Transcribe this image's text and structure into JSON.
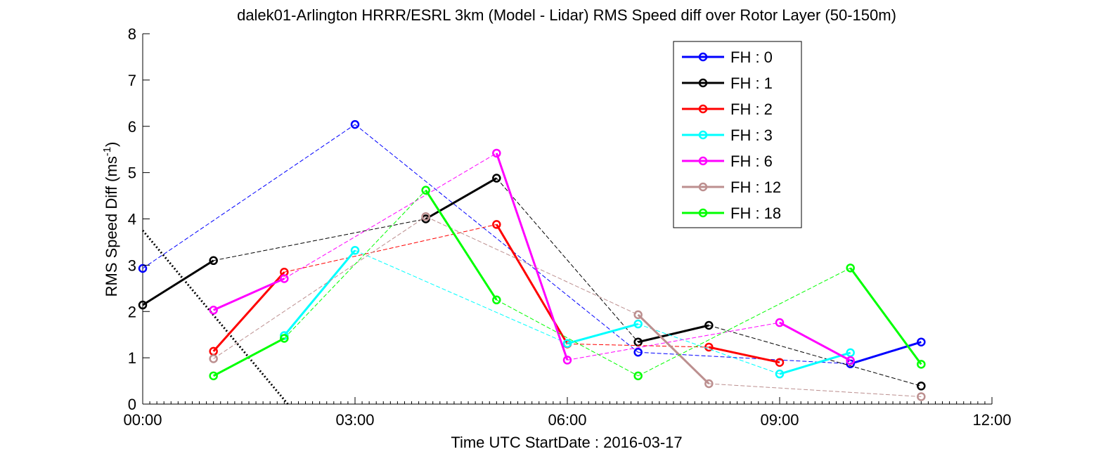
{
  "chart_data": {
    "type": "line",
    "title": "dalek01-Arlington HRRR/ESRL 3km (Model - Lidar) RMS Speed diff over Rotor Layer (50-150m)",
    "xlabel": "Time UTC    StartDate : 2016-03-17",
    "ylabel_main": "RMS Speed Diff (ms",
    "ylabel_sup": "-1",
    "ylabel_close": ")",
    "xlim": [
      0,
      12
    ],
    "ylim": [
      0,
      8
    ],
    "x_ticks": [
      0,
      3,
      6,
      9,
      12
    ],
    "x_tick_labels": [
      "00:00",
      "03:00",
      "06:00",
      "09:00",
      "12:00"
    ],
    "y_ticks": [
      0,
      1,
      2,
      3,
      4,
      5,
      6,
      7,
      8
    ],
    "y_tick_labels": [
      "0",
      "1",
      "2",
      "3",
      "4",
      "5",
      "6",
      "7",
      "8"
    ],
    "grid": false,
    "legend_position": "top-right",
    "series": [
      {
        "name": "FH : 0",
        "color": "#0000ff",
        "x": [
          0,
          3,
          7,
          10,
          11
        ],
        "y": [
          2.93,
          6.04,
          1.12,
          0.87,
          1.34
        ]
      },
      {
        "name": "FH : 1",
        "color": "#000000",
        "x": [
          0,
          1,
          4,
          5,
          7,
          8,
          11
        ],
        "y": [
          2.14,
          3.1,
          4.0,
          4.88,
          1.34,
          1.7,
          0.39
        ]
      },
      {
        "name": "FH : 2",
        "color": "#ff0000",
        "x": [
          1,
          2,
          5,
          6,
          8,
          9
        ],
        "y": [
          1.14,
          2.85,
          3.88,
          1.3,
          1.23,
          0.9
        ]
      },
      {
        "name": "FH : 3",
        "color": "#00ffff",
        "x": [
          2,
          3,
          6,
          7,
          9,
          10
        ],
        "y": [
          1.48,
          3.32,
          1.31,
          1.73,
          0.65,
          1.11
        ]
      },
      {
        "name": "FH : 6",
        "color": "#ff00ff",
        "x": [
          1,
          2,
          5,
          6,
          9,
          10
        ],
        "y": [
          2.03,
          2.71,
          5.42,
          0.95,
          1.76,
          0.94
        ]
      },
      {
        "name": "FH : 12",
        "color": "#bc8f8f",
        "x": [
          1,
          4,
          7,
          8,
          11
        ],
        "y": [
          0.98,
          4.05,
          1.93,
          0.44,
          0.16
        ]
      },
      {
        "name": "FH : 18",
        "color": "#00ff00",
        "x": [
          1,
          2,
          4,
          5,
          7,
          10,
          11
        ],
        "y": [
          0.61,
          1.42,
          4.62,
          2.25,
          0.61,
          2.94,
          0.86
        ]
      }
    ],
    "reference_line": {
      "color": "#000000",
      "style": "dotted",
      "x": [
        0,
        2.05
      ],
      "y": [
        3.75,
        0
      ]
    }
  }
}
